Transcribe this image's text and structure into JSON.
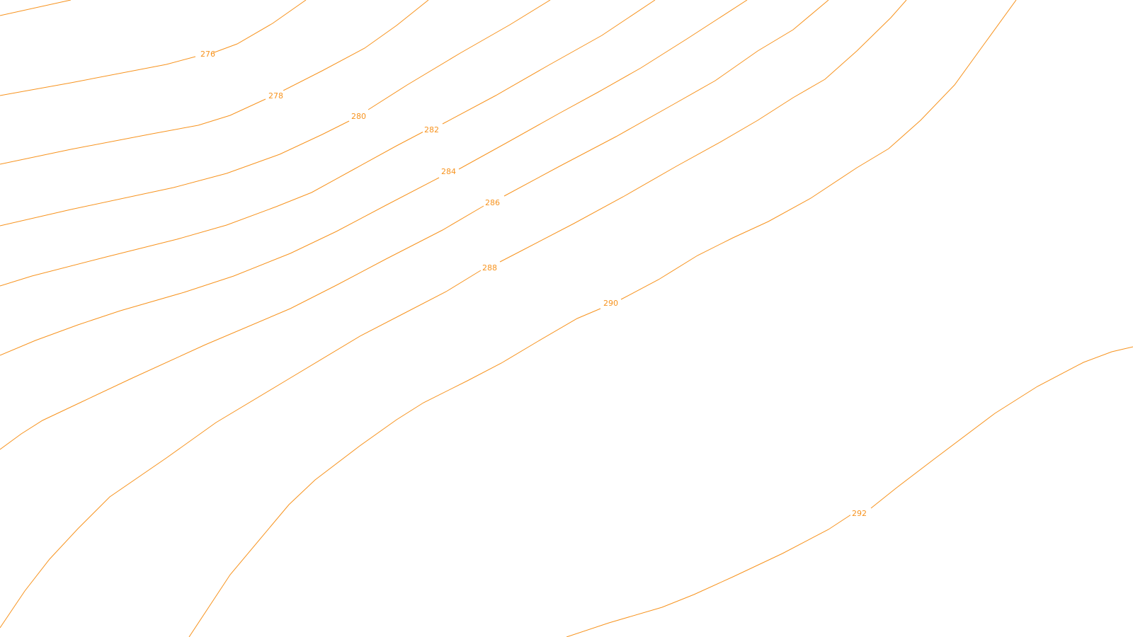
{
  "map": {
    "type": "contour-map",
    "line_color": "#f7931e",
    "background_color": "#ffffff",
    "contour_interval": 2,
    "contours": [
      {
        "id": "c274",
        "elevation": 274,
        "label": ""
      },
      {
        "id": "c276",
        "elevation": 276,
        "label": "276"
      },
      {
        "id": "c278",
        "elevation": 278,
        "label": "278"
      },
      {
        "id": "c280",
        "elevation": 280,
        "label": "280"
      },
      {
        "id": "c282",
        "elevation": 282,
        "label": "282"
      },
      {
        "id": "c284",
        "elevation": 284,
        "label": "284"
      },
      {
        "id": "c286",
        "elevation": 286,
        "label": "286"
      },
      {
        "id": "c288",
        "elevation": 288,
        "label": "288"
      },
      {
        "id": "c290",
        "elevation": 290,
        "label": "290"
      },
      {
        "id": "c292",
        "elevation": 292,
        "label": "292"
      }
    ]
  }
}
